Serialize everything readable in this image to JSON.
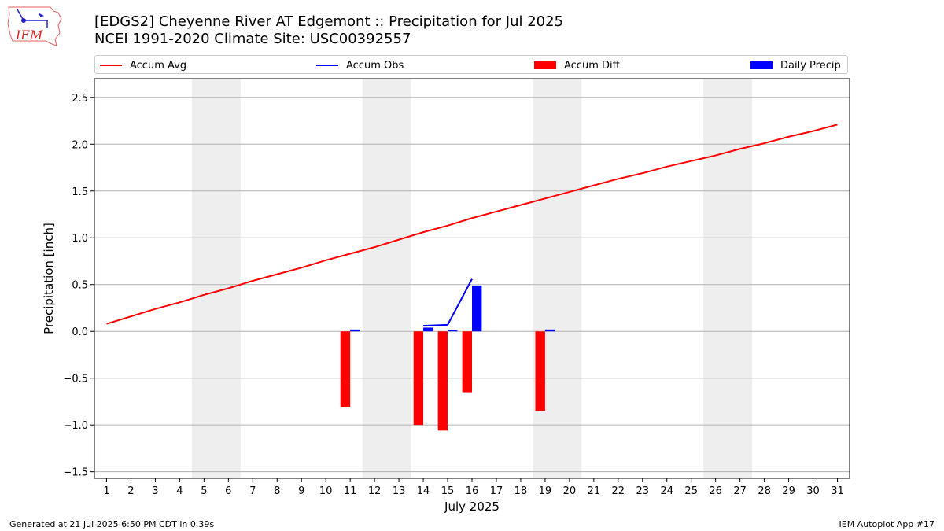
{
  "logo": {
    "text": "IEM"
  },
  "header": {
    "title_line1": "[EDGS2] Cheyenne River  AT Edgemont :: Precipitation for Jul 2025",
    "title_line2": "NCEI 1991-2020 Climate Site: USC00392557"
  },
  "footer": {
    "left": "Generated at 21 Jul 2025 6:50 PM CDT in 0.39s",
    "right": "IEM Autoplot App #17"
  },
  "colors": {
    "accum_avg": "#ff0000",
    "accum_obs": "#0000ff",
    "accum_diff": "#ff0000",
    "daily_precip": "#0000ff",
    "weekend_shade": "#eeeeee",
    "grid": "#b0b0b0"
  },
  "chart_data": {
    "type": "bar",
    "xlabel": "July 2025",
    "ylabel": "Precipitation [inch]",
    "ylim": [
      -1.57,
      2.7
    ],
    "xlim": [
      0.5,
      31.5
    ],
    "yticks": [
      -1.5,
      -1.0,
      -0.5,
      0.0,
      0.5,
      1.0,
      1.5,
      2.0,
      2.5
    ],
    "ytick_labels": [
      "−1.5",
      "−1.0",
      "−0.5",
      "0.0",
      "0.5",
      "1.0",
      "1.5",
      "2.0",
      "2.5"
    ],
    "xticks": [
      1,
      2,
      3,
      4,
      5,
      6,
      7,
      8,
      9,
      10,
      11,
      12,
      13,
      14,
      15,
      16,
      17,
      18,
      19,
      20,
      21,
      22,
      23,
      24,
      25,
      26,
      27,
      28,
      29,
      30,
      31
    ],
    "grid": "horizontal",
    "legend_position": "top",
    "weekend_spans": [
      [
        4.5,
        6.5
      ],
      [
        11.5,
        13.5
      ],
      [
        18.5,
        20.5
      ],
      [
        25.5,
        27.5
      ]
    ],
    "series": [
      {
        "name": "Accum Avg",
        "kind": "line",
        "x": [
          1,
          2,
          3,
          4,
          5,
          6,
          7,
          8,
          9,
          10,
          11,
          12,
          13,
          14,
          15,
          16,
          17,
          18,
          19,
          20,
          21,
          22,
          23,
          24,
          25,
          26,
          27,
          28,
          29,
          30,
          31
        ],
        "values": [
          0.08,
          0.16,
          0.24,
          0.31,
          0.39,
          0.46,
          0.54,
          0.61,
          0.68,
          0.76,
          0.83,
          0.9,
          0.98,
          1.06,
          1.13,
          1.21,
          1.28,
          1.35,
          1.42,
          1.49,
          1.56,
          1.63,
          1.69,
          1.76,
          1.82,
          1.88,
          1.95,
          2.01,
          2.08,
          2.14,
          2.21
        ]
      },
      {
        "name": "Accum Obs",
        "kind": "line",
        "x": [
          14,
          15,
          16
        ],
        "values": [
          0.06,
          0.07,
          0.56
        ]
      },
      {
        "name": "Accum Diff",
        "kind": "bar",
        "x": [
          11,
          14,
          15,
          16,
          19
        ],
        "values": [
          -0.81,
          -1.0,
          -1.06,
          -0.65,
          -0.85
        ]
      },
      {
        "name": "Daily Precip",
        "kind": "bar",
        "x": [
          11,
          14,
          15,
          16,
          19
        ],
        "values": [
          0.02,
          0.04,
          0.01,
          0.49,
          0.02
        ]
      }
    ]
  }
}
